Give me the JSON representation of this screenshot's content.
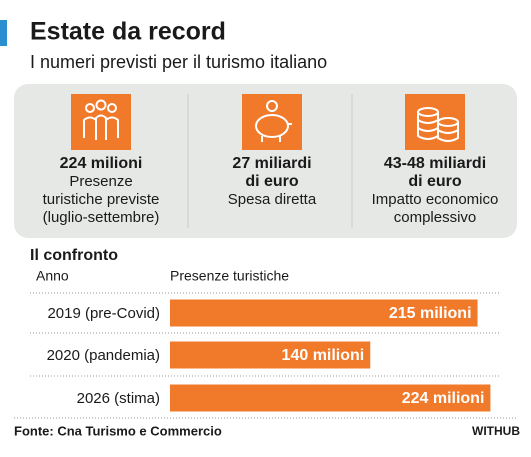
{
  "header": {
    "title": "Estate da record",
    "subtitle": "I numeri previsti per il turismo italiano"
  },
  "stats": [
    {
      "value_lines": [
        "224 milioni"
      ],
      "text_lines": [
        "Presenze",
        "turistiche previste",
        "(luglio-settembre)"
      ]
    },
    {
      "value_lines": [
        "27 miliardi",
        "di euro"
      ],
      "text_lines": [
        "Spesa diretta"
      ]
    },
    {
      "value_lines": [
        "43-48 miliardi",
        "di euro"
      ],
      "text_lines": [
        "Impatto economico",
        "complessivo"
      ]
    }
  ],
  "chart_data": {
    "type": "bar",
    "orientation": "horizontal",
    "title": "Il confronto",
    "ylabel": "Anno",
    "xlabel": "Presenze turistiche",
    "categories": [
      "2019 (pre-Covid)",
      "2020 (pandemia)",
      "2026 (stima)"
    ],
    "values": [
      215,
      140,
      224
    ],
    "value_labels": [
      "215 milioni",
      "140 milioni",
      "224 milioni"
    ],
    "color": "#f07a2a",
    "xlim": [
      0,
      230
    ]
  },
  "footer": {
    "source": "Fonte: Cna Turismo e Commercio",
    "brand": "WITHUB"
  }
}
